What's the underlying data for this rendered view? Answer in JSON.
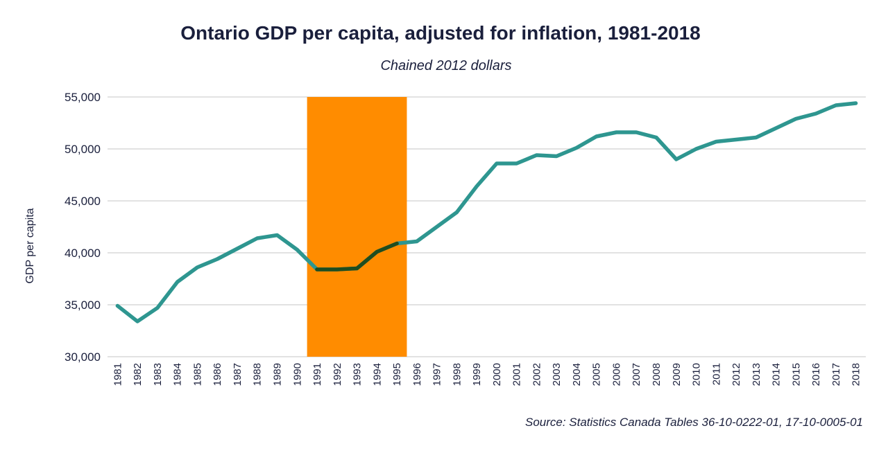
{
  "chart_data": {
    "type": "line",
    "title": "Ontario GDP per capita, adjusted for inflation, 1981-2018",
    "subtitle": "Chained 2012 dollars",
    "ylabel": "GDP per capita",
    "xlabel": "",
    "source": "Source: Statistics Canada Tables 36-10-0222-01, 17-10-0005-01",
    "ylim": [
      30000,
      55000
    ],
    "yticks": [
      30000,
      35000,
      40000,
      45000,
      50000,
      55000
    ],
    "ytick_labels": [
      "30,000",
      "35,000",
      "40,000",
      "45,000",
      "50,000",
      "55,000"
    ],
    "grid": true,
    "x": [
      "1981",
      "1982",
      "1983",
      "1984",
      "1985",
      "1986",
      "1987",
      "1988",
      "1989",
      "1990",
      "1991",
      "1992",
      "1993",
      "1994",
      "1995",
      "1996",
      "1997",
      "1998",
      "1999",
      "2000",
      "2001",
      "2002",
      "2003",
      "2004",
      "2005",
      "2006",
      "2007",
      "2008",
      "2009",
      "2010",
      "2011",
      "2012",
      "2013",
      "2014",
      "2015",
      "2016",
      "2017",
      "2018"
    ],
    "series": [
      {
        "values": [
          34900,
          33400,
          34700,
          37200,
          38600,
          39400,
          40400,
          41400,
          41700,
          40300,
          38400,
          38400,
          38500,
          40100,
          40900,
          41100,
          42500,
          43900,
          46400,
          48600,
          48600,
          49400,
          49300,
          50100,
          51200,
          51600,
          51600,
          51100,
          49000,
          50000,
          50700,
          50900,
          51100,
          52000,
          52900,
          53400,
          54200,
          54400
        ],
        "color": "#2e9690"
      }
    ],
    "highlight": {
      "start": "1991",
      "end": "1995",
      "color": "#ff8c00",
      "line_color": "#1f4d1f"
    }
  }
}
